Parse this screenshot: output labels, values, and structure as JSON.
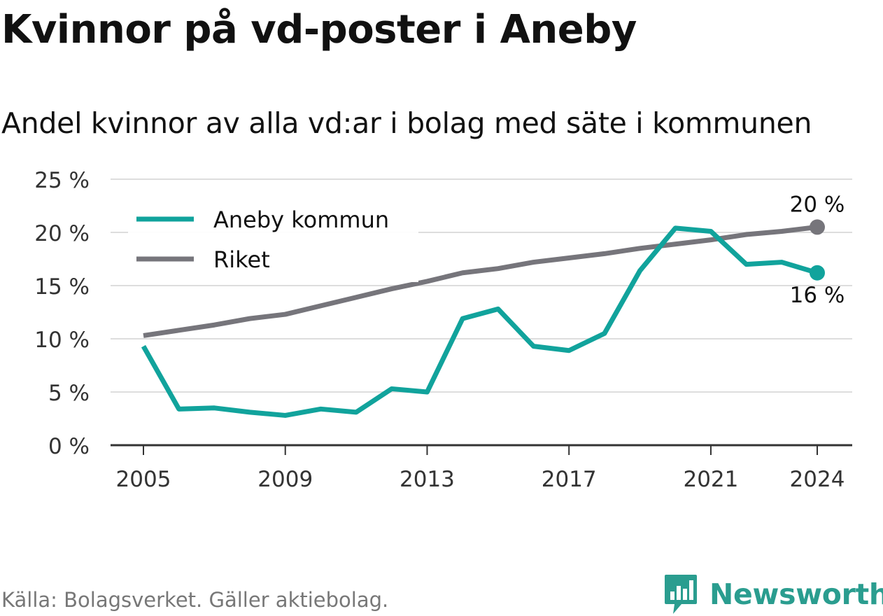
{
  "title": "Kvinnor på vd-poster i Aneby",
  "subtitle": "Andel kvinnor av alla vd:ar i bolag med säte i kommunen",
  "source": "Källa: Bolagsverket. Gäller aktiebolag.",
  "brand": {
    "name": "Newsworthy",
    "icon": "newsworthy-logo-icon",
    "color": "#2a9d8f"
  },
  "chart_data": {
    "type": "line",
    "x": [
      2005,
      2006,
      2007,
      2008,
      2009,
      2010,
      2011,
      2012,
      2013,
      2014,
      2015,
      2016,
      2017,
      2018,
      2019,
      2020,
      2021,
      2022,
      2023,
      2024
    ],
    "x_ticks": [
      2005,
      2009,
      2013,
      2017,
      2021,
      2024
    ],
    "y_ticks": [
      0,
      5,
      10,
      15,
      20,
      25
    ],
    "y_tick_labels": [
      "0 %",
      "5 %",
      "10 %",
      "15 %",
      "20 %",
      "25 %"
    ],
    "ylim": [
      0,
      25
    ],
    "grid": true,
    "legend_position": "top-left",
    "series": [
      {
        "name": "Aneby kommun",
        "color": "#11a39c",
        "values": [
          9.3,
          3.4,
          3.5,
          3.1,
          2.8,
          3.4,
          3.1,
          5.3,
          5.0,
          11.9,
          12.8,
          9.3,
          8.9,
          10.5,
          16.4,
          20.4,
          20.1,
          17.0,
          17.2,
          16.2
        ],
        "end_label": "16 %"
      },
      {
        "name": "Riket",
        "color": "#76757b",
        "values": [
          10.3,
          10.8,
          11.3,
          11.9,
          12.3,
          13.1,
          13.9,
          14.7,
          15.4,
          16.2,
          16.6,
          17.2,
          17.6,
          18.0,
          18.5,
          18.9,
          19.3,
          19.8,
          20.1,
          20.5
        ],
        "end_label": "20 %"
      }
    ]
  }
}
